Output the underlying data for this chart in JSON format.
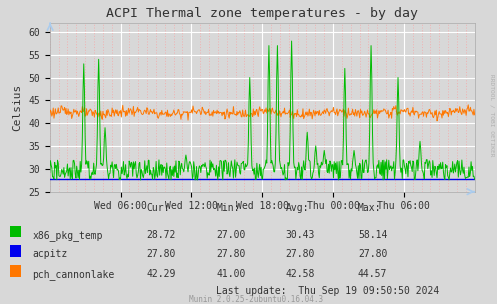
{
  "title": "ACPI Thermal zone temperatures - by day",
  "ylabel": "Celsius",
  "ylim": [
    25,
    62
  ],
  "yticks": [
    25,
    30,
    35,
    40,
    45,
    50,
    55,
    60
  ],
  "bg_color": "#d8d8d8",
  "plot_bg_color": "#d8d8d8",
  "xtick_labels": [
    "Wed 06:00",
    "Wed 12:00",
    "Wed 18:00",
    "Thu 00:00",
    "Thu 06:00"
  ],
  "xtick_positions": [
    0.1667,
    0.3333,
    0.5,
    0.6667,
    0.8333
  ],
  "series_x86_color": "#00bb00",
  "series_acpitz_color": "#0000ee",
  "series_pch_color": "#ff7700",
  "right_label": "RRDTOOL / TOBI OETIKER",
  "last_update": "Last update:  Thu Sep 19 09:50:50 2024",
  "munin_version": "Munin 2.0.25-2ubuntu0.16.04.3",
  "num_points": 600,
  "x86_spike_positions": [
    0.08,
    0.115,
    0.13,
    0.32,
    0.36,
    0.47,
    0.515,
    0.535,
    0.57,
    0.605,
    0.625,
    0.645,
    0.695,
    0.715,
    0.755,
    0.82,
    0.87
  ],
  "x86_spike_heights": [
    53,
    54,
    39,
    33,
    31,
    50,
    57,
    57,
    58,
    38,
    35,
    34,
    52,
    34,
    57,
    50,
    36
  ]
}
